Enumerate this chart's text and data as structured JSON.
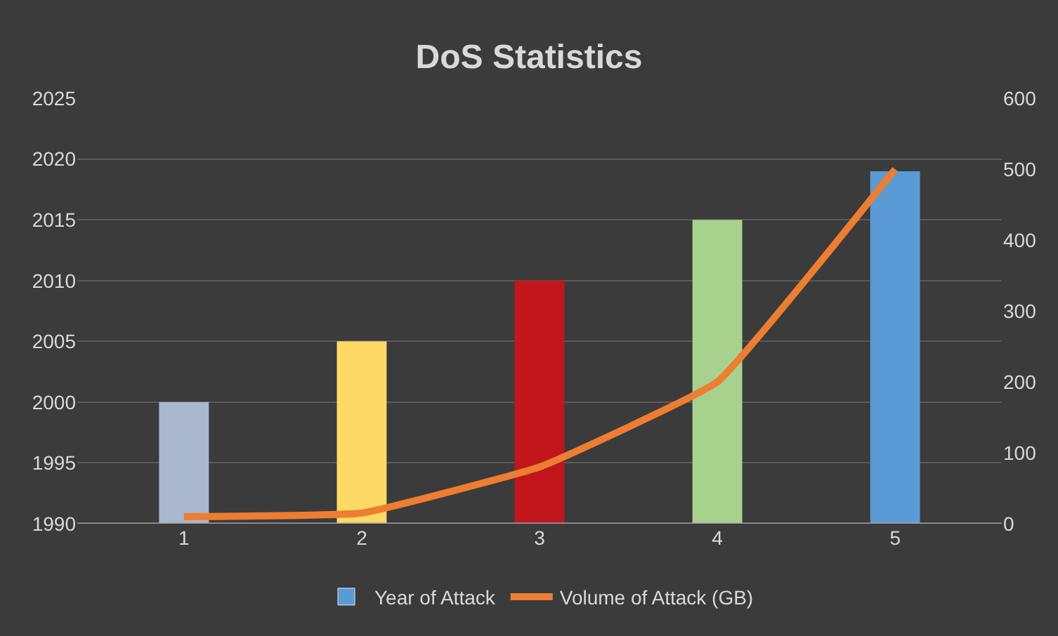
{
  "chart_data": {
    "type": "bar",
    "title": "DoS Statistics",
    "categories": [
      "1",
      "2",
      "3",
      "4",
      "5"
    ],
    "series": [
      {
        "name": "Year of Attack",
        "color": "#5b9bd5",
        "colors": [
          "#a9b7cf",
          "#ffd966",
          "#c0161c",
          "#a9d18e",
          "#5b9bd5"
        ],
        "values": [
          2000,
          2005,
          2010,
          2015,
          2019
        ]
      },
      {
        "name": "Volume of Attack (GB)",
        "type": "line",
        "axis": "y2",
        "color": "#ed7d31",
        "values": [
          10,
          15,
          80,
          200,
          500
        ]
      }
    ],
    "ylim": [
      1990,
      2025
    ],
    "yticks": [
      1990,
      1995,
      2000,
      2005,
      2010,
      2015,
      2020,
      2025
    ],
    "y2lim": [
      0,
      600
    ],
    "y2ticks": [
      0,
      100,
      200,
      300,
      400,
      500,
      600
    ],
    "grid": "y",
    "legend": "bottom",
    "marker": "none"
  }
}
